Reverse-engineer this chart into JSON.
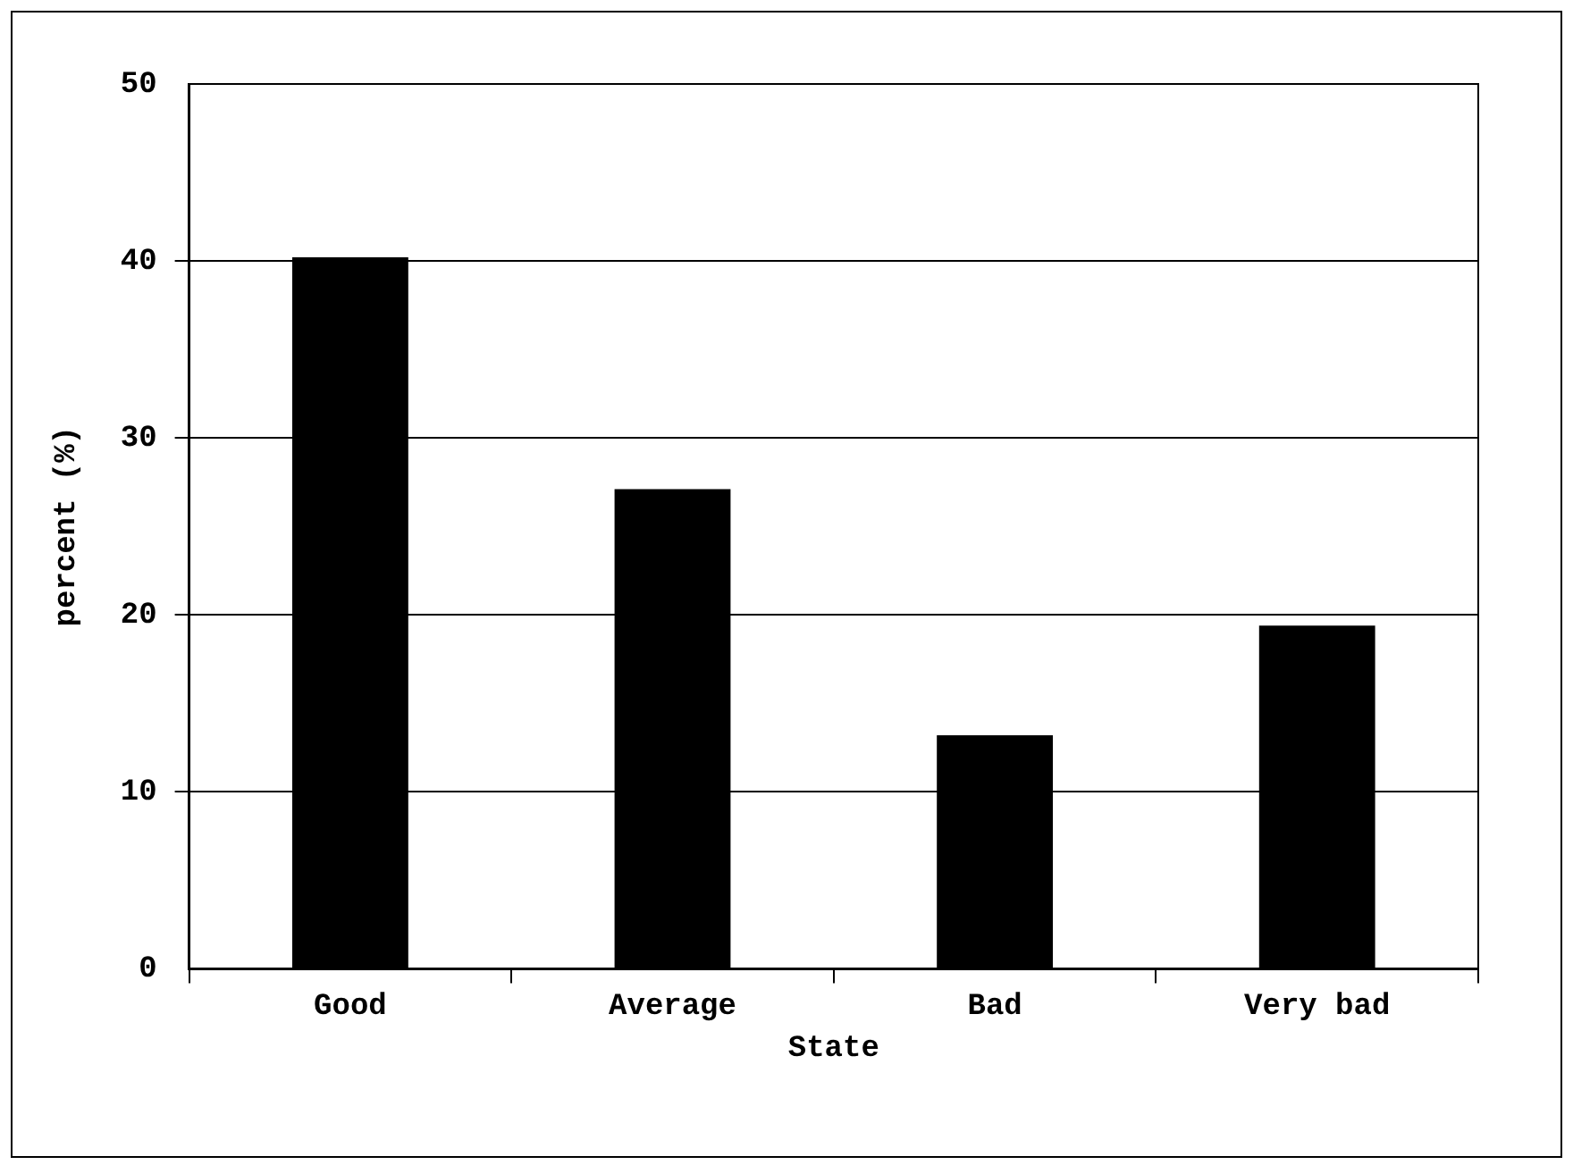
{
  "chart_data": {
    "type": "bar",
    "xlabel": "State",
    "ylabel": "percent (%)",
    "categories": [
      "Good",
      "Average",
      "Bad",
      "Very bad"
    ],
    "values": [
      40.2,
      27.1,
      13.2,
      19.4
    ],
    "color": "#000000",
    "ylim": [
      0,
      50
    ],
    "yticks": [
      0,
      10,
      20,
      30,
      40,
      50
    ],
    "grid": "y",
    "legend": false
  }
}
